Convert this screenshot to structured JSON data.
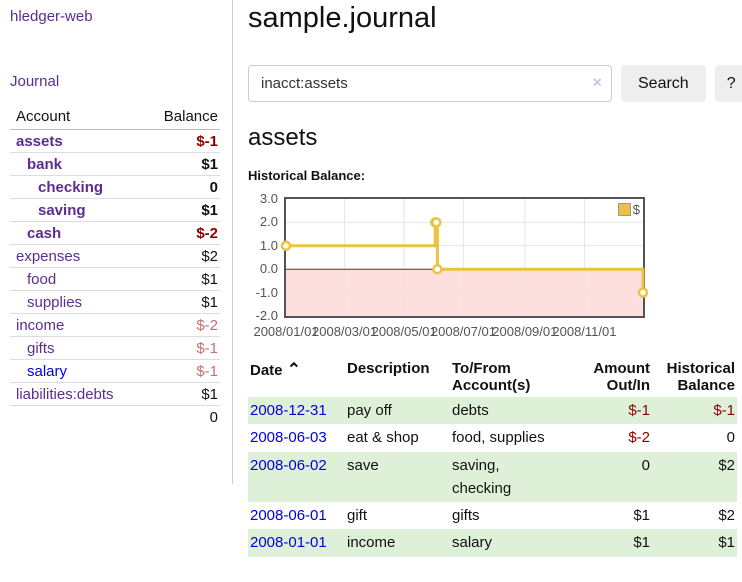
{
  "app": {
    "title": "hledger-web",
    "nav_journal": "Journal"
  },
  "sidebar": {
    "header": {
      "account": "Account",
      "balance": "Balance"
    },
    "accounts": [
      {
        "label": "assets",
        "balance": "$-1",
        "indent": 0,
        "bold": true,
        "link_color": "purple",
        "balance_style": "neg"
      },
      {
        "label": "bank",
        "balance": "$1",
        "indent": 1,
        "bold": true,
        "link_color": "purple",
        "balance_style": ""
      },
      {
        "label": "checking",
        "balance": "0",
        "indent": 2,
        "bold": true,
        "link_color": "purple",
        "balance_style": ""
      },
      {
        "label": "saving",
        "balance": "$1",
        "indent": 2,
        "bold": true,
        "link_color": "purple",
        "balance_style": ""
      },
      {
        "label": "cash",
        "balance": "$-2",
        "indent": 1,
        "bold": true,
        "link_color": "purple",
        "balance_style": "neg"
      },
      {
        "label": "expenses",
        "balance": "$2",
        "indent": 0,
        "bold": false,
        "link_color": "purple",
        "balance_style": ""
      },
      {
        "label": "food",
        "balance": "$1",
        "indent": 1,
        "bold": false,
        "link_color": "purple",
        "balance_style": ""
      },
      {
        "label": "supplies",
        "balance": "$1",
        "indent": 1,
        "bold": false,
        "link_color": "purple",
        "balance_style": ""
      },
      {
        "label": "income",
        "balance": "$-2",
        "indent": 0,
        "bold": false,
        "link_color": "purple",
        "balance_style": "negfade"
      },
      {
        "label": "gifts",
        "balance": "$-1",
        "indent": 1,
        "bold": false,
        "link_color": "purple",
        "balance_style": "negfade"
      },
      {
        "label": "salary",
        "balance": "$-1",
        "indent": 1,
        "bold": false,
        "link_color": "blue",
        "balance_style": "negfade"
      },
      {
        "label": "liabilities:debts",
        "balance": "$1",
        "indent": 0,
        "bold": false,
        "link_color": "purple",
        "balance_style": ""
      }
    ],
    "total": "0"
  },
  "main": {
    "title": "sample.journal",
    "search": {
      "value": "inacct:assets",
      "clear_icon": "×",
      "button": "Search",
      "help": "?"
    },
    "account_heading": "assets",
    "chart_label": "Historical Balance:"
  },
  "chart_data": {
    "type": "line",
    "style": "step",
    "title": "Historical Balance:",
    "legend": {
      "label": "$",
      "position": "top-right"
    },
    "ylim": [
      -2,
      3
    ],
    "grid": true,
    "grid_color": "#e6e6e6",
    "border_color": "#545454",
    "negative_region": {
      "from": -2,
      "to": 0,
      "fill": "#ffdede",
      "zero_line_color": "#8b1a1a"
    },
    "y_ticks": [
      {
        "label": "3.0",
        "value": 3
      },
      {
        "label": "2.0",
        "value": 2
      },
      {
        "label": "1.0",
        "value": 1
      },
      {
        "label": "0.0",
        "value": 0
      },
      {
        "label": "-1.0",
        "value": -1
      },
      {
        "label": "-2.0",
        "value": -2
      }
    ],
    "x_ticks": [
      {
        "label": "2008/01/01",
        "pos": 0.0
      },
      {
        "label": "2008/03/01",
        "pos": 0.164
      },
      {
        "label": "2008/05/01",
        "pos": 0.331
      },
      {
        "label": "2008/07/01",
        "pos": 0.497
      },
      {
        "label": "2008/09/01",
        "pos": 0.669
      },
      {
        "label": "2008/11/01",
        "pos": 0.836
      }
    ],
    "series": [
      {
        "name": "$",
        "color": "#edc240",
        "points": [
          {
            "date": "2008-01-01",
            "pos": 0.0,
            "value": 1
          },
          {
            "date": "2008-06-01",
            "pos": 0.418,
            "value": 2
          },
          {
            "date": "2008-06-02",
            "pos": 0.421,
            "value": 2
          },
          {
            "date": "2008-06-03",
            "pos": 0.424,
            "value": 0
          },
          {
            "date": "2008-12-31",
            "pos": 1.0,
            "value": -1
          }
        ]
      }
    ]
  },
  "table": {
    "headers": {
      "date": {
        "lines": [
          "Date"
        ]
      },
      "sort_icon": "⌃",
      "description": {
        "lines": [
          "Description"
        ]
      },
      "accounts": {
        "lines": [
          "To/From",
          "Account(s)"
        ]
      },
      "amount": {
        "lines": [
          "Amount",
          "Out/In"
        ]
      },
      "balance": {
        "lines": [
          "Historical",
          "Balance"
        ]
      }
    },
    "rows": [
      {
        "date": "2008-12-31",
        "description": "pay off",
        "accounts": [
          "debts"
        ],
        "amount": "$-1",
        "amount_negative": true,
        "balance": "$-1",
        "balance_negative": true,
        "highlighted": true
      },
      {
        "date": "2008-06-03",
        "description": "eat & shop",
        "accounts": [
          "food, supplies"
        ],
        "amount": "$-2",
        "amount_negative": true,
        "balance": "0",
        "balance_negative": false,
        "highlighted": false
      },
      {
        "date": "2008-06-02",
        "description": "save",
        "accounts": [
          "saving,",
          "checking"
        ],
        "amount": "0",
        "amount_negative": false,
        "balance": "$2",
        "balance_negative": false,
        "highlighted": true
      },
      {
        "date": "2008-06-01",
        "description": "gift",
        "accounts": [
          "gifts"
        ],
        "amount": "$1",
        "amount_negative": false,
        "balance": "$2",
        "balance_negative": false,
        "highlighted": false
      },
      {
        "date": "2008-01-01",
        "description": "income",
        "accounts": [
          "salary"
        ],
        "amount": "$1",
        "amount_negative": false,
        "balance": "$1",
        "balance_negative": false,
        "highlighted": true
      }
    ]
  }
}
